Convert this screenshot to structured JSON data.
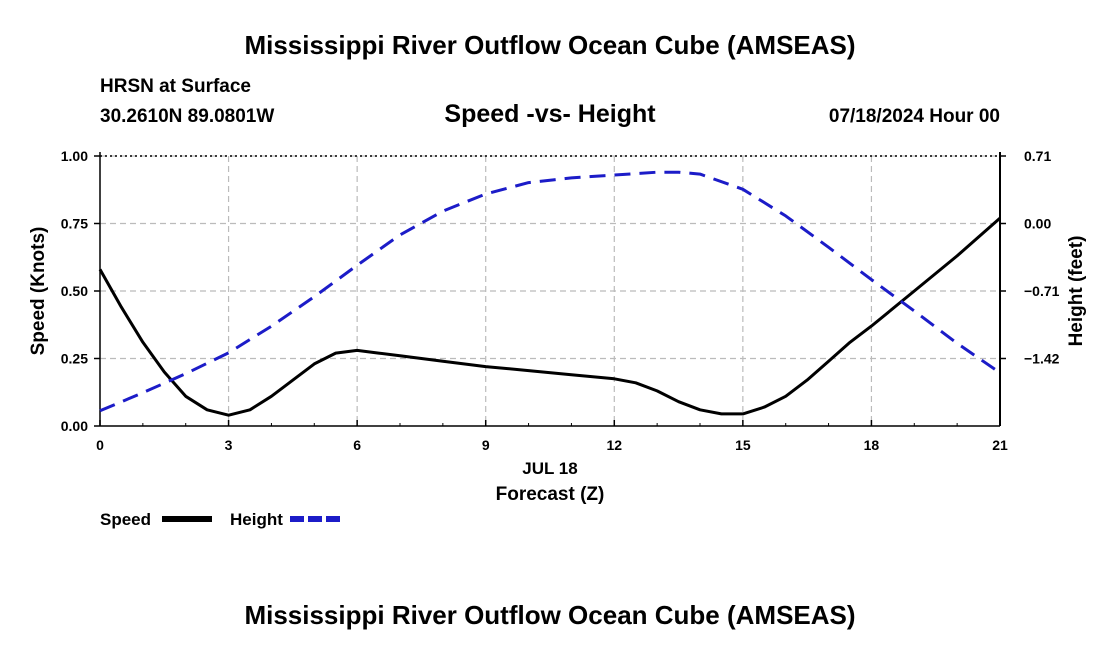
{
  "header": {
    "title": "Mississippi River Outflow Ocean Cube (AMSEAS)",
    "station": "HRSN at Surface",
    "coords": "30.2610N  89.0801W",
    "datetime": "07/18/2024 Hour 00",
    "footer_title": "Mississippi River Outflow Ocean Cube (AMSEAS)"
  },
  "chart_data": {
    "type": "line",
    "title": "Speed -vs- Height",
    "xlabel": "Forecast (Z)",
    "xdate_label": "JUL 18",
    "ylabel": "Speed (Knots)",
    "y2label": "Height (feet)",
    "xlim": [
      0,
      21
    ],
    "ylim": [
      0,
      1
    ],
    "y2lim": [
      -2.13,
      0.71
    ],
    "xticks": [
      0,
      3,
      6,
      9,
      12,
      15,
      18,
      21
    ],
    "xtick_labels": [
      "0",
      "3",
      "6",
      "9",
      "12",
      "15",
      "18",
      "21"
    ],
    "yticks": [
      0,
      0.25,
      0.5,
      0.75,
      1.0
    ],
    "ytick_labels": [
      "0.00",
      "0.25",
      "0.50",
      "0.75",
      "1.00"
    ],
    "y2ticks": [
      0.71,
      0.0,
      -0.71,
      -1.42
    ],
    "y2tick_labels": [
      "0.71",
      "0.00",
      "−0.71",
      "−1.42"
    ],
    "grid": true,
    "series": [
      {
        "name": "Speed",
        "axis": "left",
        "color": "#000000",
        "style": "solid",
        "x": [
          0,
          0.5,
          1,
          1.5,
          2,
          2.5,
          3,
          3.5,
          4,
          4.5,
          5,
          5.5,
          6,
          6.5,
          7,
          8,
          9,
          10,
          11,
          12,
          12.5,
          13,
          13.5,
          14,
          14.5,
          15,
          15.5,
          16,
          16.5,
          17,
          17.5,
          18,
          19,
          20,
          21
        ],
        "values": [
          0.58,
          0.44,
          0.31,
          0.2,
          0.11,
          0.06,
          0.04,
          0.06,
          0.11,
          0.17,
          0.23,
          0.27,
          0.28,
          0.27,
          0.26,
          0.24,
          0.22,
          0.205,
          0.19,
          0.175,
          0.16,
          0.13,
          0.09,
          0.06,
          0.045,
          0.045,
          0.07,
          0.11,
          0.17,
          0.24,
          0.31,
          0.37,
          0.5,
          0.63,
          0.77
        ]
      },
      {
        "name": "Height",
        "axis": "right",
        "color": "#1c1cc8",
        "style": "dashed",
        "x": [
          0,
          1,
          2,
          3,
          4,
          5,
          6,
          7,
          8,
          9,
          10,
          11,
          12,
          13,
          13.5,
          14,
          15,
          16,
          17,
          18,
          19,
          20,
          21
        ],
        "values": [
          -1.97,
          -1.78,
          -1.58,
          -1.36,
          -1.08,
          -0.77,
          -0.44,
          -0.12,
          0.13,
          0.31,
          0.43,
          0.48,
          0.51,
          0.54,
          0.54,
          0.52,
          0.36,
          0.08,
          -0.25,
          -0.59,
          -0.92,
          -1.26,
          -1.57
        ]
      }
    ],
    "legend": [
      {
        "label": "Speed",
        "color": "#000000",
        "style": "solid"
      },
      {
        "label": "Height",
        "color": "#1c1cc8",
        "style": "dashed"
      }
    ]
  }
}
